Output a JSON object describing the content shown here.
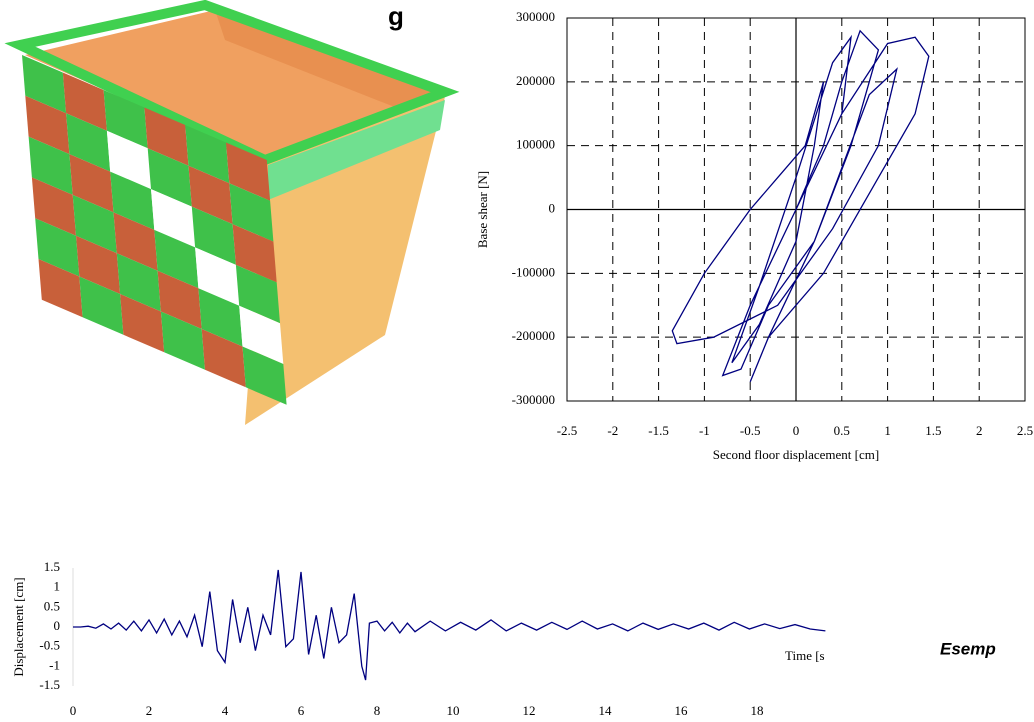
{
  "title_fragment": "g",
  "caption_fragment": "Esemp",
  "chart_data": [
    {
      "type": "line",
      "xlabel": "Second floor displacement [cm]",
      "ylabel": "Base shear [N]",
      "xlim": [
        -2.5,
        2.5
      ],
      "xticks": [
        -2.5,
        -2,
        -1.5,
        -1,
        -0.5,
        0,
        0.5,
        1,
        1.5,
        2,
        2.5
      ],
      "ylim": [
        -300000,
        300000
      ],
      "yticks": [
        -300000,
        -200000,
        -100000,
        0,
        100000,
        200000,
        300000
      ],
      "grid": true,
      "color": "#000080",
      "x": [
        0,
        0.3,
        0.5,
        0.7,
        0.9,
        0.6,
        0.2,
        -0.3,
        -0.6,
        -0.8,
        -0.5,
        0,
        0.5,
        1.0,
        1.3,
        1.45,
        1.3,
        0.9,
        0.3,
        -0.3,
        -0.5,
        -0.3,
        0.2,
        0.8,
        1.1,
        0.9,
        0.4,
        -0.2,
        -0.9,
        -1.3,
        -1.35,
        -1.0,
        -0.5,
        -0.2,
        0.1,
        0.3,
        0.2,
        0,
        -0.4,
        -0.7,
        -0.4,
        0,
        0.4,
        0.6,
        0.5,
        0
      ],
      "values": [
        0,
        100000,
        200000,
        280000,
        250000,
        100000,
        -50000,
        -150000,
        -250000,
        -260000,
        -150000,
        0,
        150000,
        260000,
        270000,
        240000,
        150000,
        50000,
        -100000,
        -200000,
        -270000,
        -200000,
        -50000,
        180000,
        220000,
        100000,
        -30000,
        -150000,
        -200000,
        -210000,
        -190000,
        -100000,
        0,
        50000,
        100000,
        200000,
        100000,
        -50000,
        -180000,
        -240000,
        -120000,
        50000,
        230000,
        270000,
        150000,
        0
      ]
    },
    {
      "type": "line",
      "xlabel": "Time [s",
      "ylabel": "Displacement [cm]",
      "xlim": [
        0,
        20
      ],
      "xticks": [
        0,
        2,
        4,
        6,
        8,
        10,
        12,
        14,
        16,
        18
      ],
      "ylim": [
        -1.5,
        1.5
      ],
      "yticks": [
        -1.5,
        -1,
        -0.5,
        0,
        0.5,
        1,
        1.5
      ],
      "grid": false,
      "color": "#000080",
      "x": [
        0,
        0.2,
        0.4,
        0.6,
        0.8,
        1.0,
        1.2,
        1.4,
        1.6,
        1.8,
        2.0,
        2.2,
        2.4,
        2.6,
        2.8,
        3.0,
        3.2,
        3.4,
        3.6,
        3.8,
        4.0,
        4.2,
        4.4,
        4.6,
        4.8,
        5.0,
        5.2,
        5.4,
        5.6,
        5.8,
        6.0,
        6.2,
        6.4,
        6.6,
        6.8,
        7.0,
        7.2,
        7.4,
        7.6,
        7.7,
        7.8,
        8.0,
        8.2,
        8.4,
        8.6,
        8.8,
        9.0,
        9.4,
        9.8,
        10.2,
        10.6,
        11.0,
        11.4,
        11.8,
        12.2,
        12.6,
        13.0,
        13.4,
        13.8,
        14.2,
        14.6,
        15.0,
        15.4,
        15.8,
        16.2,
        16.6,
        17.0,
        17.4,
        17.8,
        18.2,
        18.6,
        19.0,
        19.4,
        19.8
      ],
      "values": [
        0,
        0,
        0.02,
        -0.03,
        0.08,
        -0.05,
        0.1,
        -0.08,
        0.15,
        -0.1,
        0.18,
        -0.15,
        0.2,
        -0.2,
        0.15,
        -0.25,
        0.3,
        -0.5,
        0.9,
        -0.6,
        -0.9,
        0.7,
        -0.4,
        0.5,
        -0.6,
        0.3,
        -0.2,
        1.45,
        -0.5,
        -0.3,
        1.4,
        -0.7,
        0.3,
        -0.8,
        0.5,
        -0.4,
        -0.2,
        0.85,
        -1.0,
        -1.35,
        0.1,
        0.15,
        -0.1,
        0.12,
        -0.15,
        0.1,
        -0.12,
        0.15,
        -0.1,
        0.12,
        -0.08,
        0.18,
        -0.1,
        0.1,
        -0.08,
        0.12,
        -0.06,
        0.15,
        -0.05,
        0.08,
        -0.1,
        0.1,
        -0.06,
        0.08,
        -0.05,
        0.1,
        -0.08,
        0.12,
        -0.05,
        0.08,
        -0.04,
        0.06,
        -0.05,
        -0.1
      ]
    }
  ]
}
